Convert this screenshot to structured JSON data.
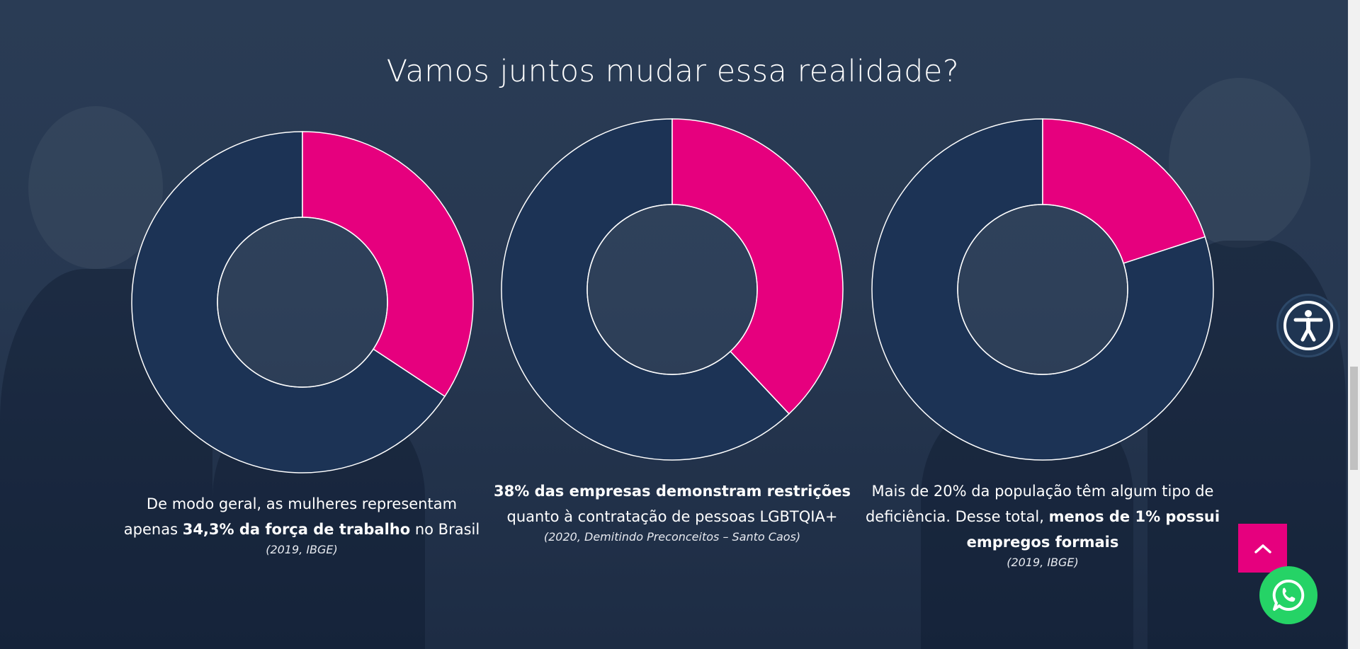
{
  "section": {
    "title": "Vamos juntos mudar essa realidade?"
  },
  "colors": {
    "accent": "#e6007e",
    "donut_base": "#1c3355",
    "background": "#273851"
  },
  "stats": [
    {
      "percent": 34.3,
      "text_before": "De modo geral, as mulheres representam apenas ",
      "highlight": "34,3% da força de trabalho",
      "text_after": " no Brasil",
      "source": "(2019, IBGE)"
    },
    {
      "percent": 38,
      "text_before": "",
      "highlight": "38% das empresas demonstram restrições",
      "text_after": " quanto à contratação de pessoas LGBTQIA+",
      "source": "(2020, Demitindo Preconceitos – Santo Caos)"
    },
    {
      "percent": 20,
      "text_before": "Mais de 20% da população têm algum tipo de deficiência. Desse total, ",
      "highlight": "menos de 1% possui empregos formais",
      "text_after": "",
      "source": "(2019, IBGE)"
    }
  ],
  "floating": {
    "accessibility_icon": "accessibility-icon",
    "scroll_top_icon": "chevron-up-icon",
    "whatsapp_icon": "whatsapp-icon"
  }
}
